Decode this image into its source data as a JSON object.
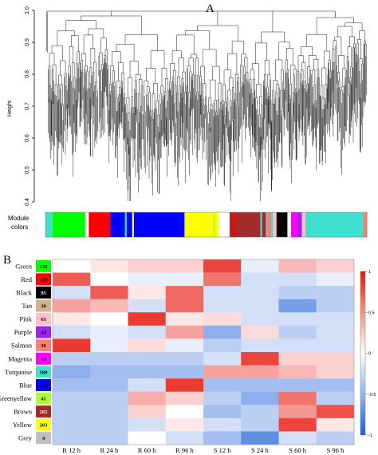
{
  "figure": {
    "panel_a_label": "A",
    "panel_b_label": "B"
  },
  "dendrogram": {
    "ylabel": "Height",
    "yticks": [
      "1.0",
      "0.9",
      "0.8",
      "0.7",
      "0.6",
      "0.5",
      "0.4"
    ],
    "ylim": [
      0.4,
      1.0
    ],
    "module_label_line1": "Module",
    "module_label_line2": "colors",
    "color_strip": [
      {
        "color": "#40e0d0",
        "w": 2
      },
      {
        "color": "#00ff00",
        "w": 9
      },
      {
        "color": "#ffffff",
        "w": 1
      },
      {
        "color": "#ff0000",
        "w": 6
      },
      {
        "color": "#0000ff",
        "w": 4
      },
      {
        "color": "#40e0d0",
        "w": 0.5
      },
      {
        "color": "#0000ff",
        "w": 1.5
      },
      {
        "color": "#ffff00",
        "w": 0.5
      },
      {
        "color": "#0000ff",
        "w": 14
      },
      {
        "color": "#ffff00",
        "w": 8
      },
      {
        "color": "#adff2f",
        "w": 0.5
      },
      {
        "color": "#ffff00",
        "w": 1
      },
      {
        "color": "#ffffff",
        "w": 3
      },
      {
        "color": "#a52a2a",
        "w": 1
      },
      {
        "color": "#ff0000",
        "w": 0.5
      },
      {
        "color": "#a52a2a",
        "w": 7
      },
      {
        "color": "#40e0d0",
        "w": 0.5
      },
      {
        "color": "#a52a2a",
        "w": 1
      },
      {
        "color": "#aaaaaa",
        "w": 0.5
      },
      {
        "color": "#fa8072",
        "w": 1
      },
      {
        "color": "#40e0d0",
        "w": 0.5
      },
      {
        "color": "#ffc0cb",
        "w": 1
      },
      {
        "color": "#000000",
        "w": 3
      },
      {
        "color": "#ffffff",
        "w": 1
      },
      {
        "color": "#ff00ff",
        "w": 2
      },
      {
        "color": "#a020f0",
        "w": 1
      },
      {
        "color": "#ffc0cb",
        "w": 1
      },
      {
        "color": "#40e0d0",
        "w": 16
      },
      {
        "color": "#fa8072",
        "w": 1
      }
    ]
  },
  "chart_data": {
    "type": "heatmap",
    "columns": [
      "R  12 h",
      "R  24 h",
      "R  60 h",
      "R  96 h",
      "S  12 h",
      "S  24 h",
      "S  60 h",
      "S  96 h"
    ],
    "rows": [
      {
        "name": "Green",
        "count": "155",
        "color": "#00ff00",
        "countColor": "#000000",
        "values": [
          0.0,
          0.1,
          0.2,
          0.2,
          0.8,
          -0.1,
          0.3,
          0.2
        ]
      },
      {
        "name": "Red",
        "count": "159",
        "color": "#ff0000",
        "countColor": "#000000",
        "values": [
          0.7,
          0.0,
          -0.1,
          -0.1,
          0.6,
          -0.2,
          -0.2,
          -0.1
        ]
      },
      {
        "name": "Black",
        "count": "95",
        "color": "#000000",
        "countColor": "#ffffff",
        "values": [
          -0.2,
          0.7,
          0.1,
          0.65,
          -0.2,
          -0.2,
          -0.3,
          -0.3
        ]
      },
      {
        "name": "Tan",
        "count": "39",
        "color": "#d2b48c",
        "countColor": "#000000",
        "values": [
          0.4,
          0.3,
          -0.2,
          0.65,
          -0.2,
          -0.2,
          -0.6,
          -0.3
        ]
      },
      {
        "name": "Pink",
        "count": "65",
        "color": "#ffc0cb",
        "countColor": "#000000",
        "values": [
          0.1,
          0.0,
          0.85,
          0.1,
          0.15,
          -0.2,
          -0.2,
          -0.2
        ]
      },
      {
        "name": "Purple",
        "count": "43",
        "color": "#a020f0",
        "countColor": "#000000",
        "values": [
          -0.2,
          -0.1,
          -0.2,
          0.4,
          -0.5,
          0.15,
          -0.3,
          -0.2
        ]
      },
      {
        "name": "Salmon",
        "count": "30",
        "color": "#fa8072",
        "countColor": "#000000",
        "values": [
          0.85,
          -0.1,
          0.15,
          -0.1,
          -0.3,
          -0.2,
          -0.2,
          -0.2
        ]
      },
      {
        "name": "Magenta",
        "count": "61",
        "color": "#ff00ff",
        "countColor": "#000000",
        "values": [
          -0.3,
          -0.3,
          -0.3,
          -0.3,
          -0.2,
          0.8,
          0.2,
          0.2
        ]
      },
      {
        "name": "Turquoise",
        "count": "589",
        "color": "#40e0d0",
        "countColor": "#000000",
        "values": [
          -0.5,
          -0.4,
          -0.4,
          -0.4,
          0.4,
          0.4,
          0.3,
          0.2
        ]
      },
      {
        "name": "Blue",
        "count": "154",
        "color": "#0000ff",
        "countColor": "#000000",
        "values": [
          -0.4,
          -0.4,
          -0.2,
          0.85,
          -0.4,
          -0.4,
          -0.4,
          -0.4
        ]
      },
      {
        "name": "Greenyellow",
        "count": "41",
        "color": "#adff2f",
        "countColor": "#000000",
        "values": [
          -0.3,
          -0.3,
          0.35,
          0.2,
          -0.3,
          -0.5,
          0.6,
          -0.3
        ]
      },
      {
        "name": "Brown",
        "count": "265",
        "color": "#a52a2a",
        "countColor": "#ffffff",
        "values": [
          -0.3,
          -0.3,
          0.2,
          0.0,
          -0.4,
          -0.3,
          0.45,
          0.75
        ]
      },
      {
        "name": "Yellow",
        "count": "203",
        "color": "#ffff00",
        "countColor": "#000000",
        "values": [
          -0.3,
          -0.3,
          -0.2,
          0.1,
          -0.2,
          -0.3,
          0.8,
          0.1
        ]
      },
      {
        "name": "Grey",
        "count": "4",
        "color": "#bebebe",
        "countColor": "#000000",
        "values": [
          -0.3,
          -0.3,
          0.0,
          -0.2,
          -0.4,
          -0.7,
          -0.2,
          -0.3
        ]
      }
    ],
    "legend_ticks": [
      "1",
      "0.5",
      "0",
      "-0.5",
      "-1"
    ],
    "vmin": -1,
    "vmax": 1
  }
}
